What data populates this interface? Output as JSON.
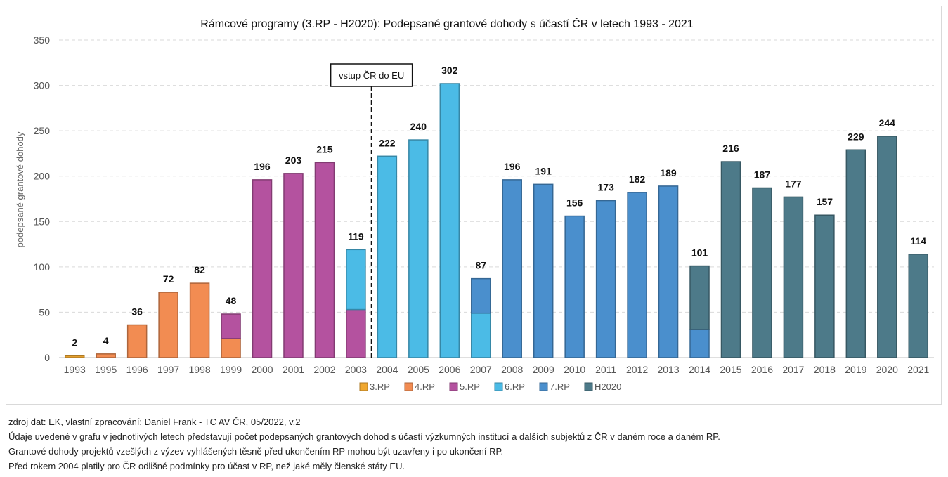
{
  "chart_data": {
    "type": "bar",
    "stacked": true,
    "title": "Rámcové programy (3.RP - H2020): Podepsané grantové dohody s účastí ČR v letech 1993 - 2021",
    "xlabel": "",
    "ylabel": "podepsané grantové dohody",
    "ylim": [
      0,
      350
    ],
    "yticks": [
      0,
      50,
      100,
      150,
      200,
      250,
      300,
      350
    ],
    "grid": true,
    "legend_position": "bottom",
    "categories": [
      "1993",
      "1995",
      "1996",
      "1997",
      "1998",
      "1999",
      "2000",
      "2001",
      "2002",
      "2003",
      "2004",
      "2005",
      "2006",
      "2007",
      "2008",
      "2009",
      "2010",
      "2011",
      "2012",
      "2013",
      "2014",
      "2015",
      "2016",
      "2017",
      "2018",
      "2019",
      "2020",
      "2021"
    ],
    "series": [
      {
        "name": "3.RP",
        "color": "#f0a830",
        "values": [
          2,
          0,
          0,
          0,
          0,
          0,
          0,
          0,
          0,
          0,
          0,
          0,
          0,
          0,
          0,
          0,
          0,
          0,
          0,
          0,
          0,
          0,
          0,
          0,
          0,
          0,
          0,
          0
        ]
      },
      {
        "name": "4.RP",
        "color": "#f28c52",
        "values": [
          0,
          4,
          36,
          72,
          82,
          21,
          0,
          0,
          0,
          0,
          0,
          0,
          0,
          0,
          0,
          0,
          0,
          0,
          0,
          0,
          0,
          0,
          0,
          0,
          0,
          0,
          0,
          0
        ]
      },
      {
        "name": "5.RP",
        "color": "#b4529f",
        "values": [
          0,
          0,
          0,
          0,
          0,
          27,
          196,
          203,
          215,
          53,
          0,
          0,
          0,
          0,
          0,
          0,
          0,
          0,
          0,
          0,
          0,
          0,
          0,
          0,
          0,
          0,
          0,
          0
        ]
      },
      {
        "name": "6.RP",
        "color": "#4bbbe6",
        "values": [
          0,
          0,
          0,
          0,
          0,
          0,
          0,
          0,
          0,
          66,
          222,
          240,
          302,
          49,
          0,
          0,
          0,
          0,
          0,
          0,
          0,
          0,
          0,
          0,
          0,
          0,
          0,
          0
        ]
      },
      {
        "name": "7.RP",
        "color": "#4a8fcd",
        "values": [
          0,
          0,
          0,
          0,
          0,
          0,
          0,
          0,
          0,
          0,
          0,
          0,
          0,
          38,
          196,
          191,
          156,
          173,
          182,
          189,
          31,
          0,
          0,
          0,
          0,
          0,
          0,
          0
        ]
      },
      {
        "name": "H2020",
        "color": "#4d7a89",
        "values": [
          0,
          0,
          0,
          0,
          0,
          0,
          0,
          0,
          0,
          0,
          0,
          0,
          0,
          0,
          0,
          0,
          0,
          0,
          0,
          0,
          70,
          216,
          187,
          177,
          157,
          229,
          244,
          114
        ]
      }
    ],
    "totals": [
      2,
      4,
      36,
      72,
      82,
      48,
      196,
      203,
      215,
      119,
      222,
      240,
      302,
      87,
      196,
      191,
      156,
      173,
      182,
      189,
      101,
      216,
      187,
      177,
      157,
      229,
      244,
      114
    ],
    "annotation": {
      "label": "vstup ČR do EU",
      "between": [
        "2003",
        "2004"
      ]
    }
  },
  "notes": [
    "zdroj dat: EK, vlastní zpracování: Daniel Frank - TC AV ČR, 05/2022, v.2",
    "Údaje uvedené v grafu v jednotlivých letech představují počet podepsaných grantových dohod s účastí výzkumných institucí a dalších subjektů z ČR v daném roce a daném RP.",
    "Grantové dohody projektů vzešlých z výzev vyhlášených těsně před ukončením RP mohou být uzavřeny i po ukončení RP.",
    "Před rokem 2004 platily pro ČR odlišné podmínky pro účast v RP, než jaké měly členské státy EU."
  ]
}
